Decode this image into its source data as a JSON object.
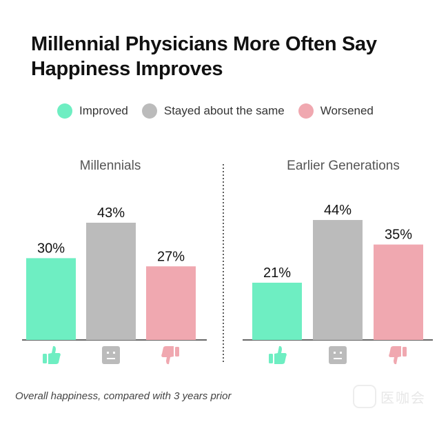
{
  "title": "Millennial Physicians More Often Say Happiness Improves",
  "legend": [
    {
      "label": "Improved",
      "color": "#6eeec2"
    },
    {
      "label": "Stayed about the same",
      "color": "#bbbbbb"
    },
    {
      "label": "Worsened",
      "color": "#f0a8b0"
    }
  ],
  "footer": "Overall happiness, compared with 3 years prior",
  "watermark": "医咖会",
  "chart_data": [
    {
      "type": "bar",
      "title": "Millennials",
      "categories": [
        "Improved",
        "Stayed about the same",
        "Worsened"
      ],
      "values": [
        30,
        43,
        27
      ],
      "labels": [
        "30%",
        "43%",
        "27%"
      ],
      "colors": [
        "#6eeec2",
        "#bbbbbb",
        "#f0a8b0"
      ],
      "ylim": [
        0,
        50
      ]
    },
    {
      "type": "bar",
      "title": "Earlier Generations",
      "categories": [
        "Improved",
        "Stayed about the same",
        "Worsened"
      ],
      "values": [
        21,
        44,
        35
      ],
      "labels": [
        "21%",
        "44%",
        "35%"
      ],
      "colors": [
        "#6eeec2",
        "#bbbbbb",
        "#f0a8b0"
      ],
      "ylim": [
        0,
        50
      ]
    }
  ],
  "icons": [
    "thumbs-up-icon",
    "neutral-face-icon",
    "thumbs-down-icon"
  ]
}
